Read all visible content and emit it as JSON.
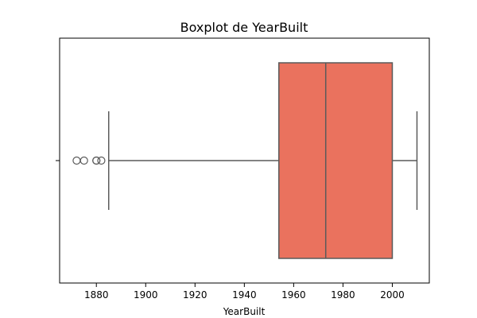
{
  "chart_data": {
    "type": "boxplot",
    "title": "Boxplot de YearBuilt",
    "xlabel": "YearBuilt",
    "ylabel": "",
    "xlim": [
      1865.1,
      2015.0
    ],
    "x_ticks": [
      1880,
      1900,
      1920,
      1940,
      1960,
      1980,
      2000
    ],
    "box": {
      "whisker_low": 1885,
      "q1": 1954,
      "median": 1973,
      "q3": 2000,
      "whisker_high": 2010
    },
    "outliers": [
      1872,
      1875,
      1880,
      1880,
      1882
    ],
    "colors": {
      "box_fill": "#ea725e",
      "lines": "#5a5a5a",
      "frame": "#000000"
    },
    "grid": false
  }
}
